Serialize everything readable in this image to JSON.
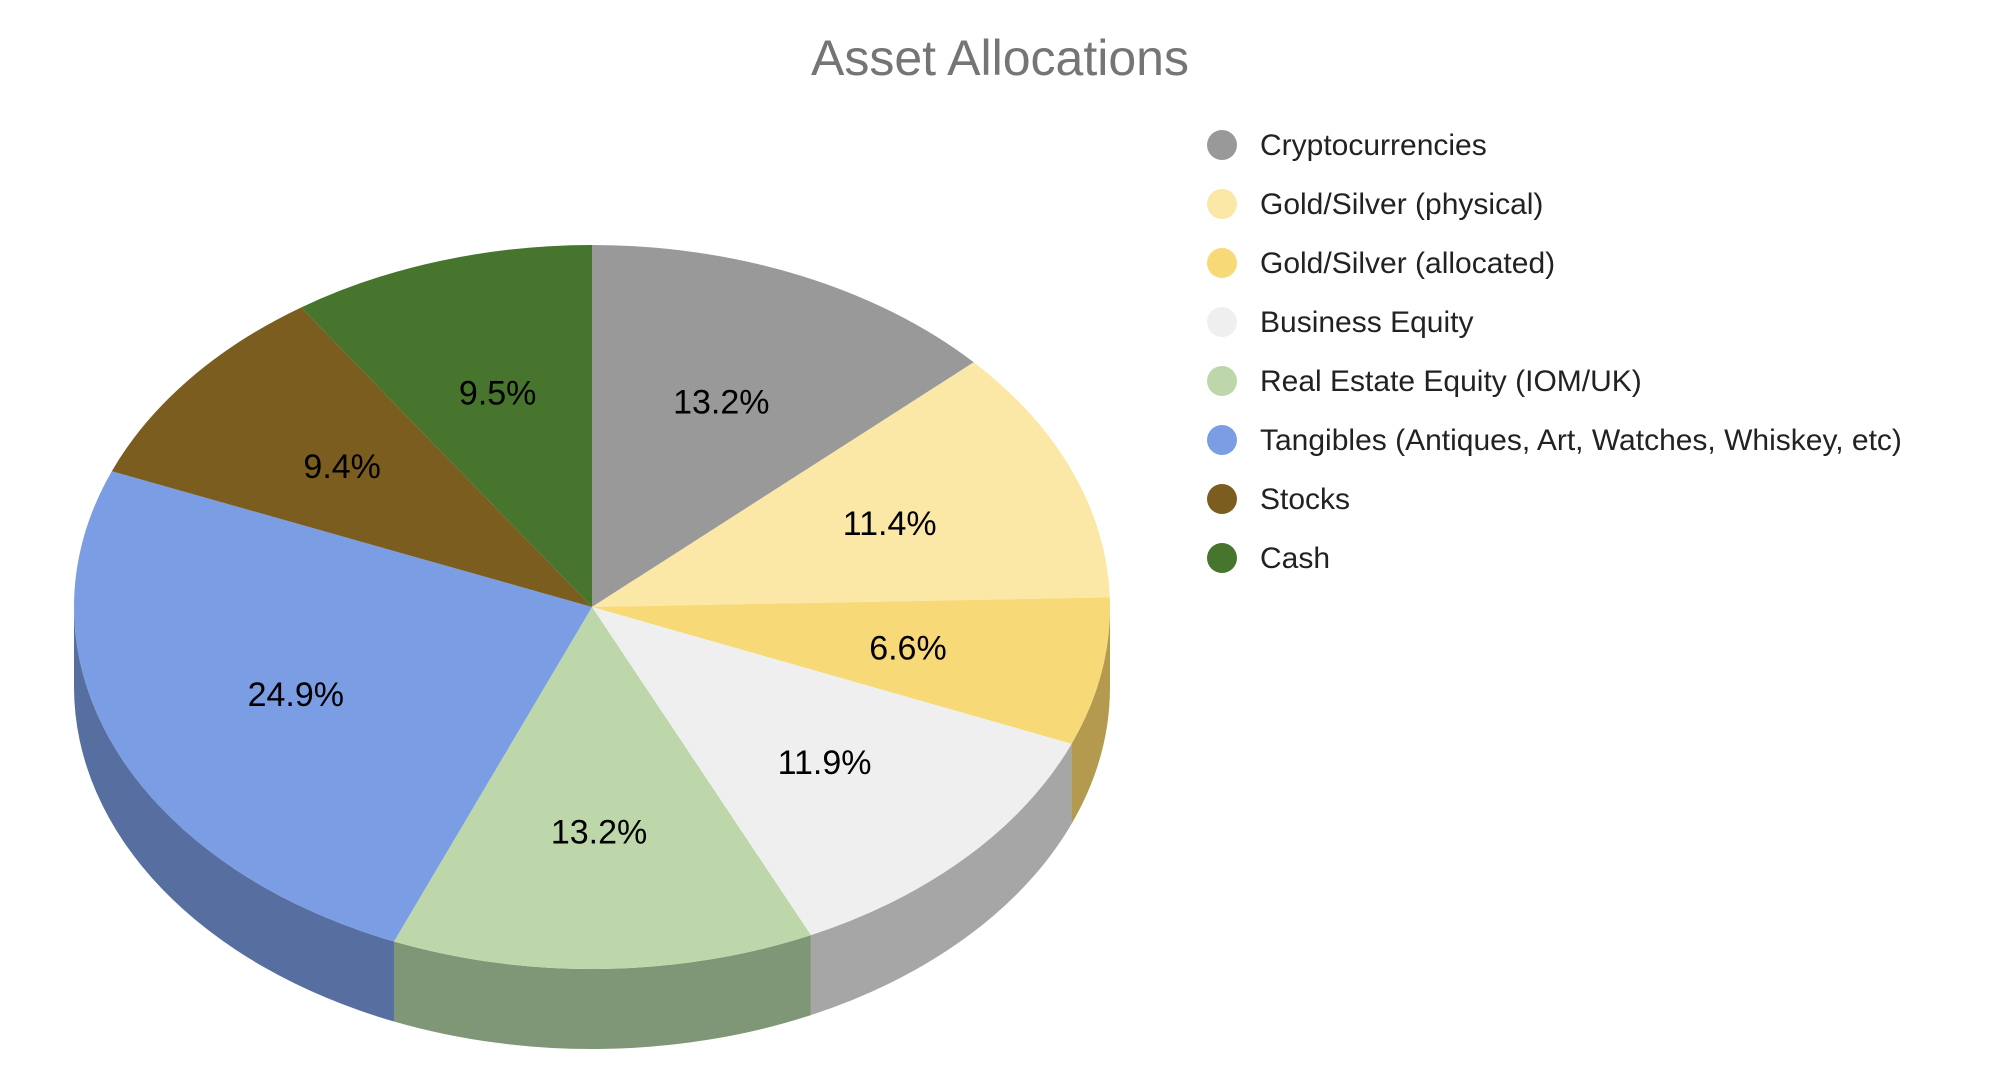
{
  "chart_data": {
    "type": "pie",
    "style": "3d",
    "title": "Asset Allocations",
    "legend_position": "right",
    "slices": [
      {
        "label": "Cryptocurrencies",
        "value": 13.2,
        "display": "13.2%",
        "color": "#999999",
        "side_color": "#a6a6a6"
      },
      {
        "label": "Gold/Silver (physical)",
        "value": 11.4,
        "display": "11.4%",
        "color": "#fce8a6",
        "side_color": "#c9b37a"
      },
      {
        "label": "Gold/Silver (allocated)",
        "value": 6.6,
        "display": "6.6%",
        "color": "#f8d978",
        "side_color": "#b39a4e"
      },
      {
        "label": "Business Equity",
        "value": 11.9,
        "display": "11.9%",
        "color": "#efefef",
        "side_color": "#a6a6a6"
      },
      {
        "label": "Real Estate Equity (IOM/UK)",
        "value": 13.2,
        "display": "13.2%",
        "color": "#bdd7ab",
        "side_color": "#7f9677"
      },
      {
        "label": "Tangibles (Antiques, Art, Watches, Whiskey, etc)",
        "value": 24.9,
        "display": "24.9%",
        "color": "#7a9de3",
        "side_color": "#566fa0"
      },
      {
        "label": "Stocks",
        "value": 9.4,
        "display": "9.4%",
        "color": "#7a5d1f",
        "side_color": "#5a4416"
      },
      {
        "label": "Cash",
        "value": 9.5,
        "display": "9.5%",
        "color": "#47752d",
        "side_color": "#345521"
      }
    ]
  }
}
